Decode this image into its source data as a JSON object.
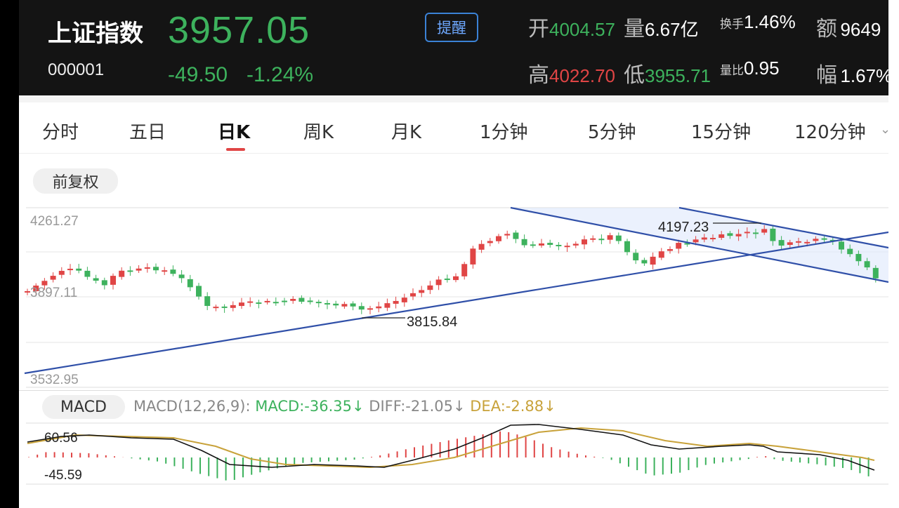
{
  "header": {
    "name": "上证指数",
    "code": "000001",
    "price": "3957.05",
    "change": "-49.50",
    "change_pct": "-1.24%",
    "alert_label": "提醒",
    "stats": {
      "open_label": "开",
      "open": "4004.57",
      "volume_label": "量",
      "volume": "6.67亿",
      "turnover_label": "换手",
      "turnover": "1.46%",
      "amount_label": "额",
      "amount": "9649",
      "high_label": "高",
      "high": "4022.70",
      "low_label": "低",
      "low": "3955.71",
      "vol_ratio_label": "量比",
      "vol_ratio": "0.95",
      "amplitude_label": "幅",
      "amplitude": "1.67%"
    }
  },
  "periods": {
    "tabs": [
      "分时",
      "五日",
      "日K",
      "周K",
      "月K",
      "1分钟",
      "5分钟",
      "15分钟",
      "120分钟"
    ],
    "active": "日K"
  },
  "adjust_label": "前复权",
  "chart": {
    "y_top": "4261.27",
    "y_mid": "3897.11",
    "y_bottom": "3532.95",
    "high_annotation": "4197.23",
    "low_annotation": "3815.84"
  },
  "macd": {
    "tab_label": "MACD",
    "params": "MACD(12,26,9):",
    "macd_text": "MACD:-36.35",
    "diff_text": "DIFF:-21.05",
    "dea_text": "DEA:-2.88",
    "y_top": "60.56",
    "y_bottom": "-45.59"
  },
  "colors": {
    "up": "#e04545",
    "down": "#3db25d",
    "trendline": "#2f4fa8",
    "dea": "#c8a23a"
  }
}
